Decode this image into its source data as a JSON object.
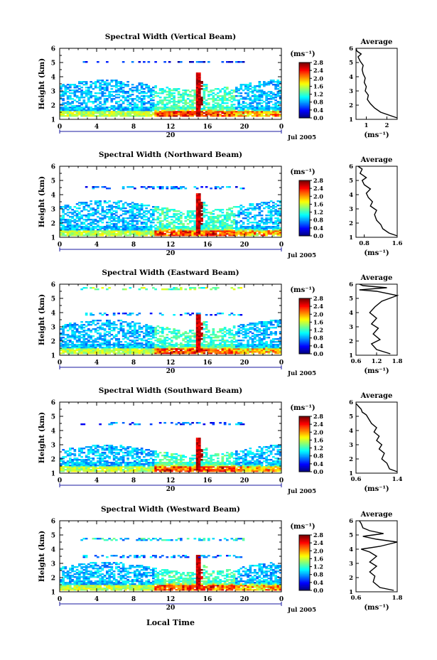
{
  "figure": {
    "xaxis_title": "Local Time",
    "date_label": "Jul 2005",
    "day_label": "20",
    "colorbar_unit": "(ms⁻¹)",
    "avg_title": "Average",
    "avg_unit": "(ms⁻¹)"
  },
  "chart_data": [
    {
      "type": "heatmap",
      "title": "Spectral Width (Vertical Beam)",
      "ylabel": "Height (km)",
      "xlabel": "Local Time",
      "xlim": [
        0,
        24
      ],
      "ylim": [
        1,
        6
      ],
      "xticks": [
        "0",
        "4",
        "8",
        "12",
        "16",
        "20",
        "0"
      ],
      "yticks": [
        "1",
        "2",
        "3",
        "4",
        "5",
        "6"
      ],
      "colorbar": {
        "range": [
          0.0,
          2.8
        ],
        "ticks": [
          "0.0",
          "0.4",
          "0.8",
          "1.2",
          "1.6",
          "2.0",
          "2.4",
          "2.8"
        ]
      },
      "profile": {
        "title": "Average",
        "xlabel": "(ms⁻¹)",
        "xlim": [
          0.5,
          2.5
        ],
        "xticks": [
          "1",
          "2"
        ],
        "points": [
          [
            2.5,
            1.1
          ],
          [
            2.1,
            1.3
          ],
          [
            1.7,
            1.5
          ],
          [
            1.4,
            1.8
          ],
          [
            1.2,
            2.1
          ],
          [
            1.05,
            2.4
          ],
          [
            1.1,
            2.7
          ],
          [
            0.95,
            3.0
          ],
          [
            1.0,
            3.3
          ],
          [
            0.9,
            3.6
          ],
          [
            0.95,
            3.9
          ],
          [
            0.85,
            4.2
          ],
          [
            0.8,
            4.5
          ],
          [
            0.85,
            4.8
          ],
          [
            0.7,
            5.1
          ],
          [
            0.6,
            5.4
          ],
          [
            0.75,
            5.6
          ],
          [
            0.55,
            5.8
          ],
          [
            0.5,
            6.0
          ]
        ]
      },
      "coverage": [
        1.2,
        3.4
      ],
      "layers": [
        [
          5.0,
          5.0,
          0.0
        ]
      ]
    },
    {
      "type": "heatmap",
      "title": "Spectral Width (Northward Beam)",
      "ylabel": "Height (km)",
      "xlabel": "Local Time",
      "xlim": [
        0,
        24
      ],
      "ylim": [
        1,
        6
      ],
      "xticks": [
        "0",
        "4",
        "8",
        "12",
        "16",
        "20",
        "0"
      ],
      "yticks": [
        "1",
        "2",
        "3",
        "4",
        "5",
        "6"
      ],
      "colorbar": {
        "range": [
          0.0,
          2.8
        ],
        "ticks": [
          "0.0",
          "0.4",
          "0.8",
          "1.2",
          "1.6",
          "2.0",
          "2.4",
          "2.8"
        ]
      },
      "profile": {
        "title": "Average",
        "xlabel": "(ms⁻¹)",
        "xlim": [
          0.6,
          1.6
        ],
        "xticks": [
          "0.8",
          "1.6"
        ],
        "points": [
          [
            1.6,
            1.1
          ],
          [
            1.4,
            1.3
          ],
          [
            1.25,
            1.6
          ],
          [
            1.2,
            1.9
          ],
          [
            1.1,
            2.2
          ],
          [
            1.05,
            2.6
          ],
          [
            1.1,
            2.9
          ],
          [
            0.95,
            3.2
          ],
          [
            1.0,
            3.5
          ],
          [
            0.9,
            3.8
          ],
          [
            0.85,
            4.1
          ],
          [
            0.95,
            4.4
          ],
          [
            0.8,
            4.7
          ],
          [
            0.75,
            5.0
          ],
          [
            0.85,
            5.2
          ],
          [
            0.7,
            5.5
          ],
          [
            0.75,
            5.8
          ],
          [
            0.65,
            6.0
          ]
        ]
      },
      "coverage": [
        1.1,
        3.2
      ],
      "layers": [
        [
          4.4,
          4.5,
          0.08
        ]
      ]
    },
    {
      "type": "heatmap",
      "title": "Spectral Width (Eastward Beam)",
      "ylabel": "Height (km)",
      "xlabel": "Local Time",
      "xlim": [
        0,
        24
      ],
      "ylim": [
        1,
        6
      ],
      "xticks": [
        "0",
        "4",
        "8",
        "12",
        "16",
        "20",
        "0"
      ],
      "yticks": [
        "1",
        "2",
        "3",
        "4",
        "5",
        "6"
      ],
      "colorbar": {
        "range": [
          0.0,
          2.8
        ],
        "ticks": [
          "0.0",
          "0.4",
          "0.8",
          "1.2",
          "1.6",
          "2.0",
          "2.4",
          "2.8"
        ]
      },
      "profile": {
        "title": "Average",
        "xlabel": "(ms⁻¹)",
        "xlim": [
          0.6,
          1.8
        ],
        "xticks": [
          "0.6",
          "1.2",
          "1.8"
        ],
        "points": [
          [
            1.6,
            1.1
          ],
          [
            1.2,
            1.4
          ],
          [
            1.05,
            1.8
          ],
          [
            1.3,
            2.1
          ],
          [
            1.1,
            2.5
          ],
          [
            1.25,
            2.9
          ],
          [
            1.05,
            3.2
          ],
          [
            1.2,
            3.6
          ],
          [
            1.0,
            4.0
          ],
          [
            1.15,
            4.4
          ],
          [
            1.35,
            4.8
          ],
          [
            1.8,
            5.2
          ],
          [
            1.2,
            5.5
          ],
          [
            0.7,
            5.6
          ],
          [
            1.5,
            5.75
          ],
          [
            0.8,
            5.9
          ],
          [
            0.7,
            6.0
          ]
        ]
      },
      "coverage": [
        1.1,
        3.1
      ],
      "layers": [
        [
          5.55,
          5.65,
          0.35
        ],
        [
          3.8,
          3.9,
          0.1
        ]
      ]
    },
    {
      "type": "heatmap",
      "title": "Spectral Width (Southward Beam)",
      "ylabel": "Height (km)",
      "xlabel": "Local Time",
      "xlim": [
        0,
        24
      ],
      "ylim": [
        1,
        6
      ],
      "xticks": [
        "0",
        "4",
        "8",
        "12",
        "16",
        "20",
        "0"
      ],
      "yticks": [
        "1",
        "2",
        "3",
        "4",
        "5",
        "6"
      ],
      "colorbar": {
        "range": [
          0.0,
          2.8
        ],
        "ticks": [
          "0.0",
          "0.4",
          "0.8",
          "1.2",
          "1.6",
          "2.0",
          "2.4",
          "2.8"
        ]
      },
      "profile": {
        "title": "Average",
        "xlabel": "(ms⁻¹)",
        "xlim": [
          0.6,
          1.4
        ],
        "xticks": [
          "0.6",
          "1.4"
        ],
        "points": [
          [
            1.4,
            1.1
          ],
          [
            1.25,
            1.3
          ],
          [
            1.2,
            1.7
          ],
          [
            1.1,
            2.0
          ],
          [
            1.15,
            2.4
          ],
          [
            1.05,
            2.7
          ],
          [
            1.1,
            3.0
          ],
          [
            1.0,
            3.3
          ],
          [
            1.05,
            3.6
          ],
          [
            0.95,
            3.9
          ],
          [
            1.0,
            4.2
          ],
          [
            0.9,
            4.5
          ],
          [
            0.85,
            4.8
          ],
          [
            0.8,
            5.1
          ],
          [
            0.72,
            5.3
          ],
          [
            0.7,
            5.5
          ],
          [
            0.65,
            5.7
          ],
          [
            0.6,
            5.9
          ]
        ]
      },
      "coverage": [
        1.1,
        2.6
      ],
      "layers": [
        [
          4.4,
          4.5,
          0.06
        ]
      ]
    },
    {
      "type": "heatmap",
      "title": "Spectral Width (Westward Beam)",
      "ylabel": "Height (km)",
      "xlabel": "Local Time",
      "xlim": [
        0,
        24
      ],
      "ylim": [
        1,
        6
      ],
      "xticks": [
        "0",
        "4",
        "8",
        "12",
        "16",
        "20",
        "0"
      ],
      "yticks": [
        "1",
        "2",
        "3",
        "4",
        "5",
        "6"
      ],
      "colorbar": {
        "range": [
          0.0,
          2.8
        ],
        "ticks": [
          "0.0",
          "0.4",
          "0.8",
          "1.2",
          "1.6",
          "2.0",
          "2.4",
          "2.8"
        ]
      },
      "profile": {
        "title": "Average",
        "xlabel": "(ms⁻¹)",
        "xlim": [
          0.6,
          1.8
        ],
        "xticks": [
          "0.6",
          "1.8"
        ],
        "points": [
          [
            1.7,
            1.1
          ],
          [
            1.3,
            1.3
          ],
          [
            1.1,
            1.7
          ],
          [
            1.15,
            2.1
          ],
          [
            1.0,
            2.4
          ],
          [
            1.2,
            2.8
          ],
          [
            1.0,
            3.1
          ],
          [
            1.2,
            3.5
          ],
          [
            1.0,
            3.8
          ],
          [
            0.75,
            4.0
          ],
          [
            1.3,
            4.2
          ],
          [
            1.8,
            4.5
          ],
          [
            1.2,
            4.7
          ],
          [
            0.8,
            4.9
          ],
          [
            1.4,
            5.1
          ],
          [
            1.0,
            5.3
          ],
          [
            0.8,
            5.5
          ],
          [
            0.75,
            5.8
          ],
          [
            0.7,
            6.0
          ]
        ]
      },
      "coverage": [
        1.1,
        2.7
      ],
      "layers": [
        [
          4.6,
          4.7,
          0.2
        ],
        [
          3.4,
          3.5,
          0.1
        ]
      ]
    }
  ]
}
